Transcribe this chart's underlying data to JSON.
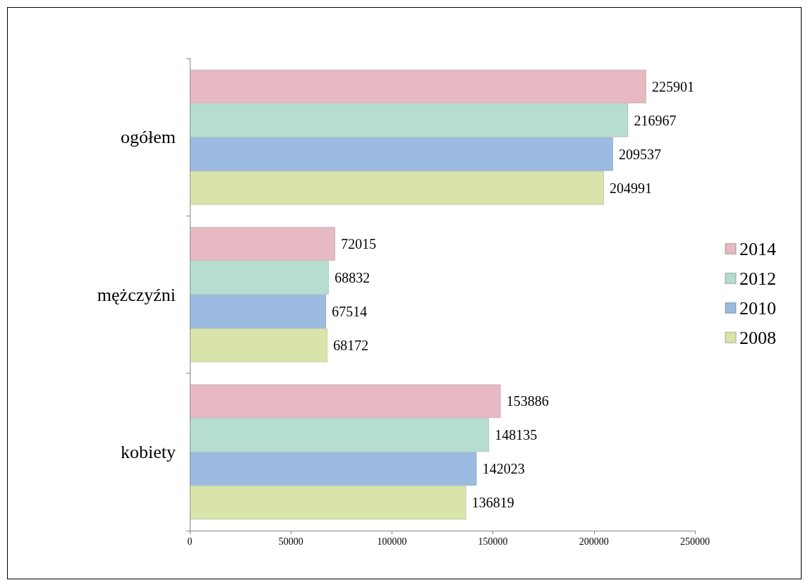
{
  "chart_data": {
    "type": "bar",
    "orientation": "horizontal",
    "categories": [
      "ogółem",
      "mężczyźni",
      "kobiety"
    ],
    "series": [
      {
        "name": "2014",
        "color": "#e6b9c3",
        "values": [
          225901,
          72015,
          153886
        ]
      },
      {
        "name": "2012",
        "color": "#b5ddd0",
        "values": [
          216967,
          68832,
          148135
        ]
      },
      {
        "name": "2010",
        "color": "#9bbbe0",
        "values": [
          209537,
          67514,
          142023
        ]
      },
      {
        "name": "2008",
        "color": "#d8e4aa",
        "values": [
          204991,
          68172,
          136819
        ]
      }
    ],
    "xlim": [
      0,
      250000
    ],
    "xticks": [
      0,
      50000,
      100000,
      150000,
      200000,
      250000
    ],
    "grid": false,
    "legend": "right",
    "data_labels": true
  }
}
